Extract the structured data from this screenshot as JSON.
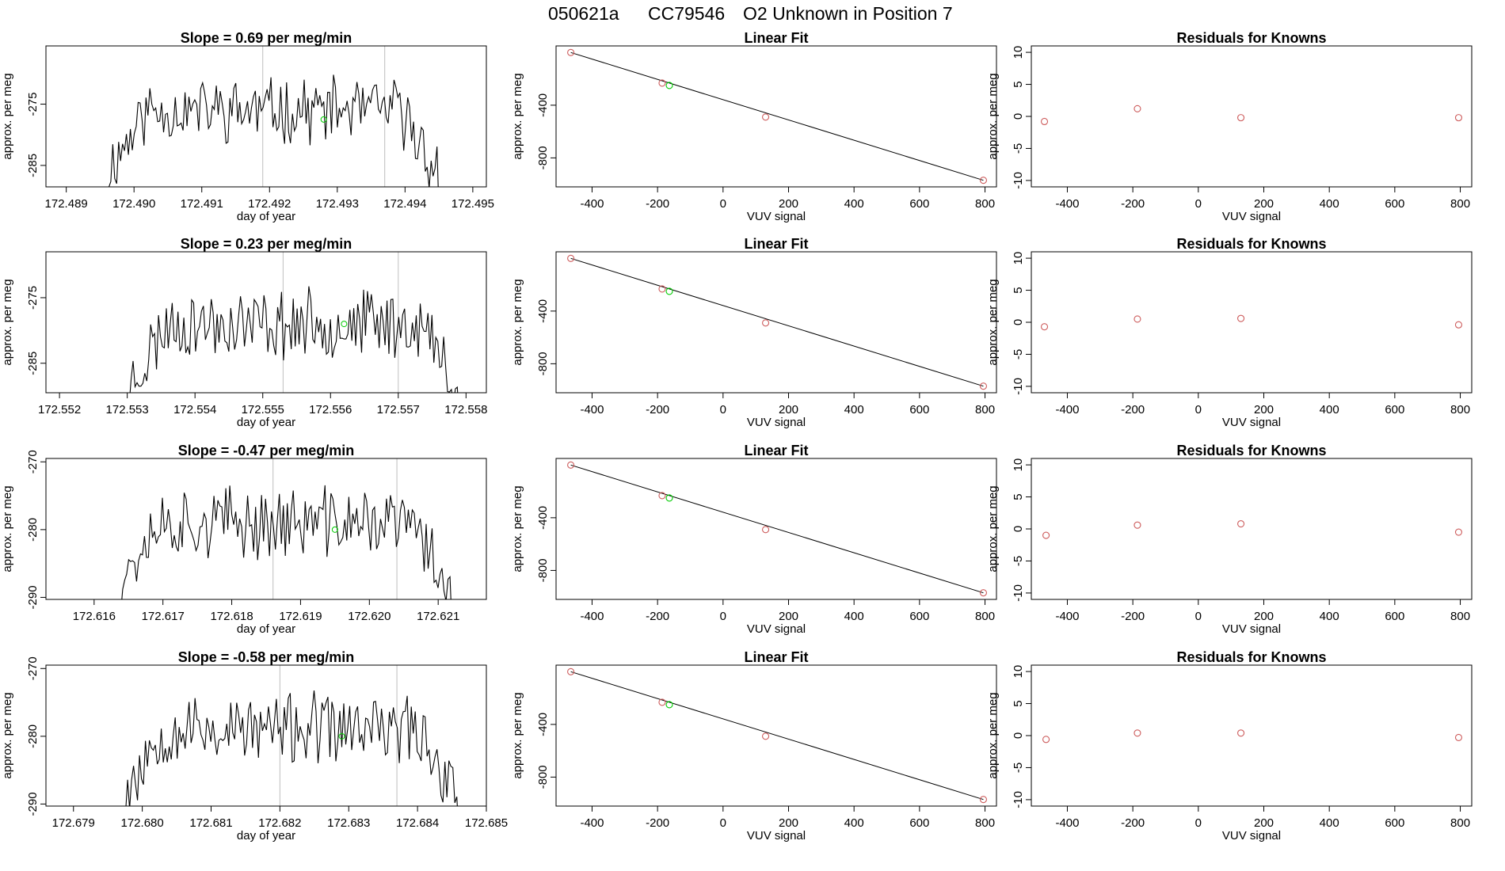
{
  "figure_title": {
    "sample": "050621a",
    "tank": "CC79546",
    "description": "O2 Unknown in Position  7"
  },
  "colors": {
    "line": "#000000",
    "vline": "#bebebe",
    "known_point": "#cd5c5c",
    "unknown_point": "#00cc00",
    "frame": "#000000"
  },
  "chart_data": [
    {
      "type": "line",
      "title": "Slope =  0.69  per meg/min",
      "xlabel": "day of year",
      "ylabel": "approx. per meg",
      "xlim": [
        172.4887,
        172.4952
      ],
      "ylim": [
        -288.5,
        -265.5
      ],
      "xticks": [
        "172.489",
        "172.490",
        "172.491",
        "172.492",
        "172.493",
        "172.494",
        "172.495"
      ],
      "yticks": [
        "-275",
        "-285"
      ],
      "vlines": [
        172.4919,
        172.4937
      ],
      "series_start": 172.4896,
      "series_end": 172.4945,
      "mean": -276,
      "seed": 11,
      "marker": {
        "x": 172.4928,
        "y": -277.5
      }
    },
    {
      "type": "scatter",
      "title": "Linear Fit",
      "xlabel": "VUV signal",
      "ylabel": "approx. per meg",
      "xlim": [
        -510,
        835
      ],
      "ylim": [
        -1020,
        50
      ],
      "xticks": [
        "-400",
        "-200",
        "0",
        "200",
        "400",
        "600",
        "800"
      ],
      "yticks": [
        "-400",
        "-800"
      ],
      "fit_line": [
        [
          -465,
          0
        ],
        [
          795,
          -970
        ]
      ],
      "knowns": [
        [
          -465,
          0
        ],
        [
          -186,
          -232
        ],
        [
          130,
          -490
        ],
        [
          795,
          -970
        ]
      ],
      "unknown": [
        [
          -164,
          -250
        ]
      ]
    },
    {
      "type": "scatter",
      "title": "Residuals for Knowns",
      "xlabel": "VUV signal",
      "ylabel": "approx. per meg",
      "xlim": [
        -510,
        835
      ],
      "ylim": [
        -11,
        11
      ],
      "xticks": [
        "-400",
        "-200",
        "0",
        "200",
        "400",
        "600",
        "800"
      ],
      "yticks": [
        "-10",
        "-5",
        "0",
        "5",
        "10"
      ],
      "knowns": [
        [
          -470,
          -0.8
        ],
        [
          -186,
          1.2
        ],
        [
          130,
          -0.2
        ],
        [
          795,
          -0.2
        ]
      ]
    },
    {
      "type": "line",
      "title": "Slope =  0.23  per meg/min",
      "xlabel": "day of year",
      "ylabel": "approx. per meg",
      "xlim": [
        172.5518,
        172.5583
      ],
      "ylim": [
        -289.5,
        -268
      ],
      "xticks": [
        "172.552",
        "172.553",
        "172.554",
        "172.555",
        "172.556",
        "172.557",
        "172.558"
      ],
      "yticks": [
        "-275",
        "-285"
      ],
      "vlines": [
        172.5553,
        172.557
      ],
      "series_start": 172.553,
      "series_end": 172.5579,
      "mean": -279,
      "seed": 23,
      "marker": {
        "x": 172.5562,
        "y": -279
      }
    },
    {
      "type": "scatter",
      "title": "Linear Fit",
      "xlabel": "VUV signal",
      "ylabel": "approx. per meg",
      "xlim": [
        -510,
        835
      ],
      "ylim": [
        -1020,
        50
      ],
      "xticks": [
        "-400",
        "-200",
        "0",
        "200",
        "400",
        "600",
        "800"
      ],
      "yticks": [
        "-400",
        "-800"
      ],
      "fit_line": [
        [
          -465,
          0
        ],
        [
          795,
          -970
        ]
      ],
      "knowns": [
        [
          -465,
          0
        ],
        [
          -186,
          -232
        ],
        [
          130,
          -490
        ],
        [
          795,
          -970
        ]
      ],
      "unknown": [
        [
          -164,
          -250
        ]
      ]
    },
    {
      "type": "scatter",
      "title": "Residuals for Knowns",
      "xlabel": "VUV signal",
      "ylabel": "approx. per meg",
      "xlim": [
        -510,
        835
      ],
      "ylim": [
        -11,
        11
      ],
      "xticks": [
        "-400",
        "-200",
        "0",
        "200",
        "400",
        "600",
        "800"
      ],
      "yticks": [
        "-10",
        "-5",
        "0",
        "5",
        "10"
      ],
      "knowns": [
        [
          -470,
          -0.7
        ],
        [
          -186,
          0.5
        ],
        [
          130,
          0.6
        ],
        [
          795,
          -0.4
        ]
      ]
    },
    {
      "type": "line",
      "title": "Slope =  -0.47  per meg/min",
      "xlabel": "day of year",
      "ylabel": "approx. per meg",
      "xlim": [
        172.6153,
        172.6217
      ],
      "ylim": [
        -290.3,
        -269.5
      ],
      "xticks": [
        "172.616",
        "172.617",
        "172.618",
        "172.619",
        "172.620",
        "172.621"
      ],
      "yticks": [
        "-270",
        "-280",
        "-290"
      ],
      "vlines": [
        172.6186,
        172.6204
      ],
      "series_start": 172.6163,
      "series_end": 172.6212,
      "mean": -279,
      "seed": 37,
      "marker": {
        "x": 172.6195,
        "y": -280
      }
    },
    {
      "type": "scatter",
      "title": "Linear Fit",
      "xlabel": "VUV signal",
      "ylabel": "approx. per meg",
      "xlim": [
        -510,
        835
      ],
      "ylim": [
        -1020,
        50
      ],
      "xticks": [
        "-400",
        "-200",
        "0",
        "200",
        "400",
        "600",
        "800"
      ],
      "yticks": [
        "-400",
        "-800"
      ],
      "fit_line": [
        [
          -465,
          0
        ],
        [
          795,
          -970
        ]
      ],
      "knowns": [
        [
          -465,
          0
        ],
        [
          -186,
          -232
        ],
        [
          130,
          -490
        ],
        [
          795,
          -970
        ]
      ],
      "unknown": [
        [
          -164,
          -250
        ]
      ]
    },
    {
      "type": "scatter",
      "title": "Residuals for Knowns",
      "xlabel": "VUV signal",
      "ylabel": "approx. per meg",
      "xlim": [
        -510,
        835
      ],
      "ylim": [
        -11,
        11
      ],
      "xticks": [
        "-400",
        "-200",
        "0",
        "200",
        "400",
        "600",
        "800"
      ],
      "yticks": [
        "-10",
        "-5",
        "0",
        "5",
        "10"
      ],
      "knowns": [
        [
          -465,
          -1.0
        ],
        [
          -186,
          0.6
        ],
        [
          130,
          0.8
        ],
        [
          795,
          -0.5
        ]
      ]
    },
    {
      "type": "line",
      "title": "Slope =  -0.58  per meg/min",
      "xlabel": "day of year",
      "ylabel": "approx. per meg",
      "xlim": [
        172.6786,
        172.685
      ],
      "ylim": [
        -290.3,
        -269.5
      ],
      "xticks": [
        "172.679",
        "172.680",
        "172.681",
        "172.682",
        "172.683",
        "172.684",
        "172.685"
      ],
      "yticks": [
        "-270",
        "-280",
        "-290"
      ],
      "vlines": [
        172.682,
        172.6837
      ],
      "series_start": 172.6797,
      "series_end": 172.6846,
      "mean": -279,
      "seed": 53,
      "marker": {
        "x": 172.6829,
        "y": -280
      }
    },
    {
      "type": "scatter",
      "title": "Linear Fit",
      "xlabel": "VUV signal",
      "ylabel": "approx. per meg",
      "xlim": [
        -510,
        835
      ],
      "ylim": [
        -1020,
        50
      ],
      "xticks": [
        "-400",
        "-200",
        "0",
        "200",
        "400",
        "600",
        "800"
      ],
      "yticks": [
        "-400",
        "-800"
      ],
      "fit_line": [
        [
          -465,
          0
        ],
        [
          795,
          -970
        ]
      ],
      "knowns": [
        [
          -465,
          0
        ],
        [
          -186,
          -232
        ],
        [
          130,
          -490
        ],
        [
          795,
          -970
        ]
      ],
      "unknown": [
        [
          -164,
          -250
        ]
      ]
    },
    {
      "type": "scatter",
      "title": "Residuals for Knowns",
      "xlabel": "VUV signal",
      "ylabel": "approx. per meg",
      "xlim": [
        -510,
        835
      ],
      "ylim": [
        -11,
        11
      ],
      "xticks": [
        "-400",
        "-200",
        "0",
        "200",
        "400",
        "600",
        "800"
      ],
      "yticks": [
        "-10",
        "-5",
        "0",
        "5",
        "10"
      ],
      "knowns": [
        [
          -465,
          -0.6
        ],
        [
          -186,
          0.4
        ],
        [
          130,
          0.4
        ],
        [
          795,
          -0.3
        ]
      ]
    }
  ]
}
